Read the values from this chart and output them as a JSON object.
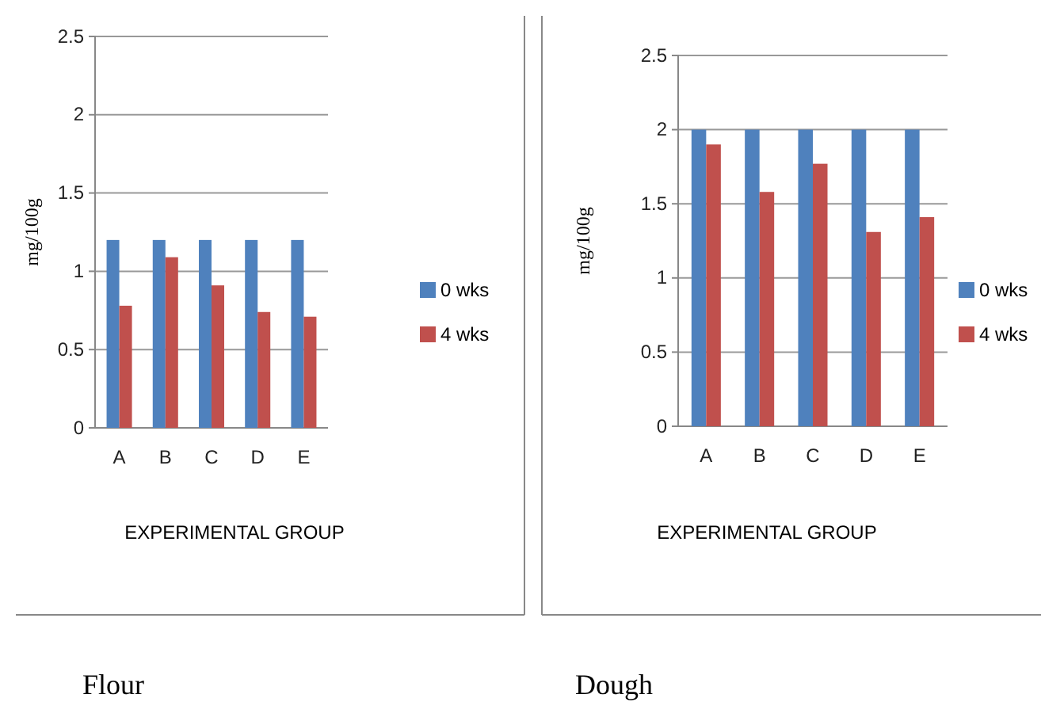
{
  "chart_data": [
    {
      "type": "bar",
      "title": "Flour",
      "xlabel": "EXPERIMENTAL GROUP",
      "ylabel": "mg/100g",
      "categories": [
        "A",
        "B",
        "C",
        "D",
        "E"
      ],
      "series": [
        {
          "name": "0 wks",
          "color": "#4f81bd",
          "values": [
            1.2,
            1.2,
            1.2,
            1.2,
            1.2
          ]
        },
        {
          "name": "4 wks",
          "color": "#c0504d",
          "values": [
            0.78,
            1.09,
            0.91,
            0.74,
            0.71
          ]
        }
      ],
      "ylim": [
        0,
        2.5
      ],
      "yticks": [
        0,
        0.5,
        1,
        1.5,
        2,
        2.5
      ],
      "grid": "y",
      "legend": "right"
    },
    {
      "type": "bar",
      "title": "Dough",
      "xlabel": "EXPERIMENTAL GROUP",
      "ylabel": "mg/100g",
      "categories": [
        "A",
        "B",
        "C",
        "D",
        "E"
      ],
      "series": [
        {
          "name": "0 wks",
          "color": "#4f81bd",
          "values": [
            2,
            2,
            2,
            2,
            2
          ]
        },
        {
          "name": "4 wks",
          "color": "#c0504d",
          "values": [
            1.9,
            1.58,
            1.77,
            1.31,
            1.41
          ]
        }
      ],
      "ylim": [
        0,
        2.5
      ],
      "yticks": [
        0,
        0.5,
        1,
        1.5,
        2,
        2.5
      ],
      "grid": "y",
      "legend": "right"
    }
  ]
}
